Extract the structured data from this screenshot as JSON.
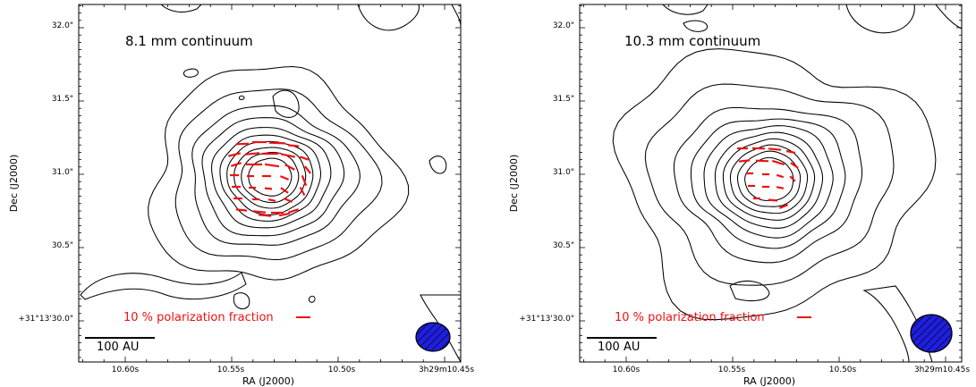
{
  "chart_data": [
    {
      "type": "contour",
      "panel": "left",
      "label": "8.1 mm continuum",
      "xlabel": "RA (J2000)",
      "ylabel": "Dec (J2000)",
      "x_ticks": [
        "10.60s",
        "10.55s",
        "10.50s",
        "3h29m10.45s"
      ],
      "y_ticks": [
        "32.0\"",
        "31.5\"",
        "31.0\"",
        "30.5\"",
        "+31°13'30.0\""
      ],
      "x_range_s": [
        10.625,
        10.435
      ],
      "y_range_arcsec": [
        29.7,
        32.1
      ],
      "source_center": {
        "ra_s": 10.543,
        "dec_arcsec": 30.93
      },
      "polarization_legend": "10 % polarization fraction",
      "scale_bar": "100 AU",
      "beam": {
        "shape": "ellipse",
        "fill": "#1f1fe0"
      },
      "contour_color": "#000000",
      "vector_color": "#ee1111"
    },
    {
      "type": "contour",
      "panel": "right",
      "label": "10.3 mm continuum",
      "xlabel": "RA (J2000)",
      "ylabel": "Dec (J2000)",
      "x_ticks": [
        "10.60s",
        "10.55s",
        "10.50s",
        "3h29m10.45s"
      ],
      "y_ticks": [
        "32.0\"",
        "31.5\"",
        "31.0\"",
        "30.5\"",
        "+31°13'30.0\""
      ],
      "x_range_s": [
        10.625,
        10.435
      ],
      "y_range_arcsec": [
        29.7,
        32.1
      ],
      "source_center": {
        "ra_s": 10.543,
        "dec_arcsec": 30.93
      },
      "polarization_legend": "10 % polarization fraction",
      "scale_bar": "100 AU",
      "beam": {
        "shape": "ellipse",
        "fill": "#1f1fe0"
      },
      "contour_color": "#000000",
      "vector_color": "#ee1111"
    }
  ]
}
